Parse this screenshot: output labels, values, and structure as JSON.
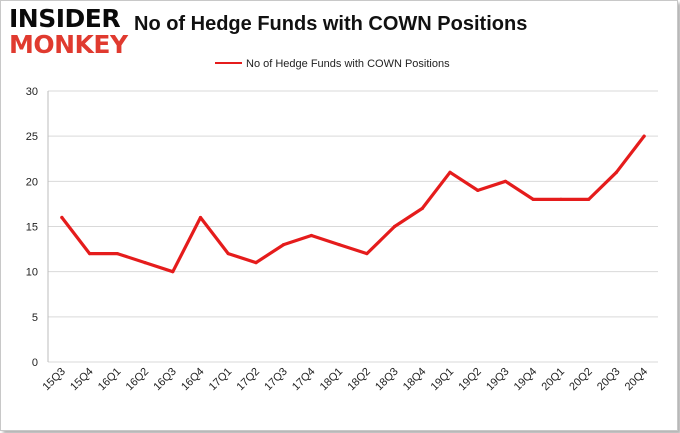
{
  "header": {
    "logo_line1": "INSIDER",
    "logo_line2": "MONKEY",
    "title": "No of Hedge Funds with COWN Positions"
  },
  "colors": {
    "line": "#e51c1c",
    "grid": "#d9d9d9",
    "logo_accent": "#e03a2f"
  },
  "chart_data": {
    "type": "line",
    "title": "No of Hedge Funds with COWN Positions",
    "xlabel": "",
    "ylabel": "",
    "categories": [
      "15Q3",
      "15Q4",
      "16Q1",
      "16Q2",
      "16Q3",
      "16Q4",
      "17Q1",
      "17Q2",
      "17Q3",
      "17Q4",
      "18Q1",
      "18Q2",
      "18Q3",
      "18Q4",
      "19Q1",
      "19Q2",
      "19Q3",
      "19Q4",
      "20Q1",
      "20Q2",
      "20Q3",
      "20Q4"
    ],
    "series": [
      {
        "name": "No of Hedge Funds with COWN Positions",
        "values": [
          16,
          12,
          12,
          11,
          10,
          16,
          12,
          11,
          13,
          14,
          13,
          12,
          15,
          17,
          21,
          19,
          20,
          18,
          18,
          18,
          21,
          25
        ]
      }
    ],
    "ylim": [
      0,
      30
    ],
    "yticks": [
      0,
      5,
      10,
      15,
      20,
      25,
      30
    ],
    "grid": true,
    "legend": "top-center"
  }
}
